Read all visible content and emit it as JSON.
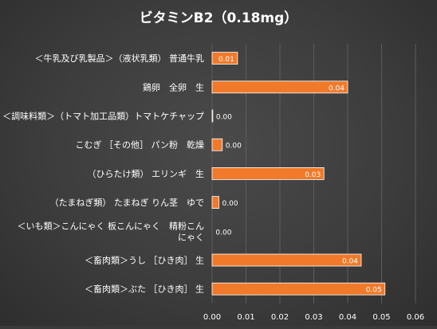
{
  "chart_data": {
    "type": "bar",
    "orientation": "horizontal",
    "title": "ビタミンB2（0.18mg）",
    "categories": [
      "＜牛乳及び乳製品＞（液状乳類） 普通牛乳",
      "鶏卵　全卵　生",
      "＜調味料類＞（トマト加工品類）トマトケチャップ",
      "こむぎ ［その他］ パン粉　乾燥",
      "（ひらたけ類） エリンギ　生",
      "（たまねぎ類） たまねぎ りん茎　ゆで",
      "＜いも類＞こんにゃく 板こんにゃく　精粉こんにゃく",
      "＜畜肉類＞うし ［ひき肉］ 生",
      "＜畜肉類＞ぶた ［ひき肉］ 生"
    ],
    "category_display_lines": [
      [
        "＜牛乳及び乳製品＞（液状乳類） 普通牛乳"
      ],
      [
        "鶏卵　全卵　生"
      ],
      [
        "＜調味料類＞（トマト加工品類）トマトケチャップ"
      ],
      [
        "こむぎ ［その他］ パン粉　乾燥"
      ],
      [
        "（ひらたけ類） エリンギ　生"
      ],
      [
        "（たまねぎ類） たまねぎ りん茎　ゆで"
      ],
      [
        "＜いも類＞こんにゃく 板こんにゃく　精粉こん",
        "にゃく"
      ],
      [
        "＜畜肉類＞うし ［ひき肉］ 生"
      ],
      [
        "＜畜肉類＞ぶた ［ひき肉］ 生"
      ]
    ],
    "values": [
      0.0075,
      0.04,
      0.0002,
      0.003,
      0.033,
      0.002,
      0.0001,
      0.044,
      0.051
    ],
    "data_labels": [
      "0.01",
      "0.04",
      "0.00",
      "0.00",
      "0.03",
      "0.00",
      "0.00",
      "0.04",
      "0.05"
    ],
    "xlim": [
      0,
      0.06
    ],
    "xticks": [
      "0.00",
      "0.01",
      "0.02",
      "0.03",
      "0.04",
      "0.05",
      "0.06"
    ],
    "xlabel": "",
    "ylabel": "",
    "grid": "vertical",
    "legend": "none",
    "colors": {
      "bar": "#f07a2a",
      "bar_edge": "#ffffff",
      "text": "#ffffff",
      "grid": "#5c5c5c"
    }
  }
}
